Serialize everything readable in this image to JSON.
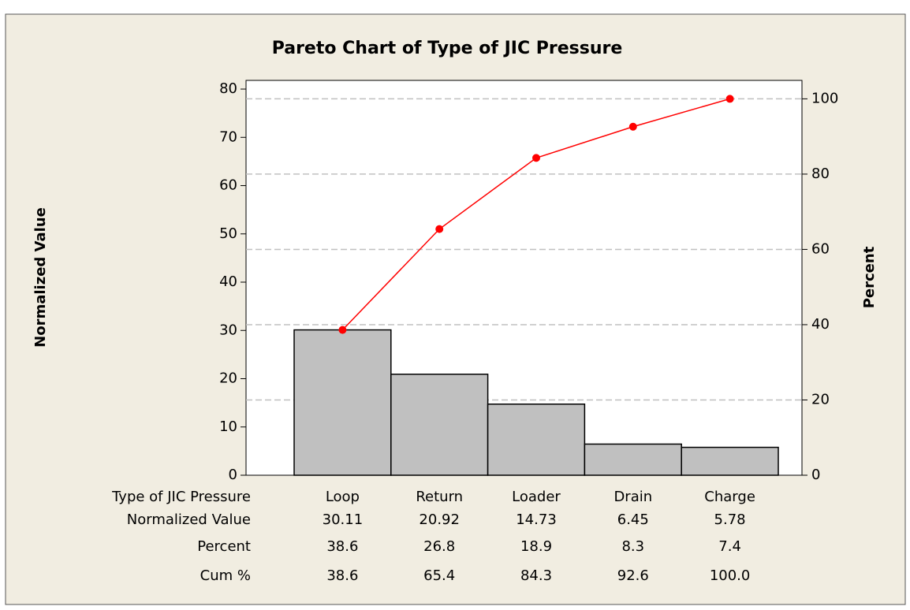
{
  "chart_data": {
    "type": "pareto",
    "title": "Pareto Chart of Type of JIC Pressure",
    "x_label": "Type of JIC Pressure",
    "y_label": "Normalized Value",
    "y2_label": "Percent",
    "categories": [
      "Loop",
      "Return",
      "Loader",
      "Drain",
      "Charge"
    ],
    "series": [
      {
        "name": "Normalized Value",
        "color": "#c0c0c0",
        "values": [
          30.11,
          20.92,
          14.73,
          6.45,
          5.78
        ]
      },
      {
        "name": "Percent",
        "values": [
          38.6,
          26.8,
          18.9,
          8.3,
          7.4
        ]
      },
      {
        "name": "Cum %",
        "color": "#ff0000",
        "axis": "y2",
        "values": [
          38.6,
          65.4,
          84.3,
          92.6,
          100
        ],
        "value_labels": [
          "38.6",
          "65.4",
          "84.3",
          "92.6",
          "100.0"
        ]
      }
    ],
    "ylim": [
      0,
      81.8
    ],
    "yticks": [
      0,
      10,
      20,
      30,
      40,
      50,
      60,
      70,
      80
    ],
    "y2lim": [
      0,
      104.9
    ],
    "y2ticks": [
      0,
      20,
      40,
      60,
      80,
      100
    ],
    "grid": true
  }
}
